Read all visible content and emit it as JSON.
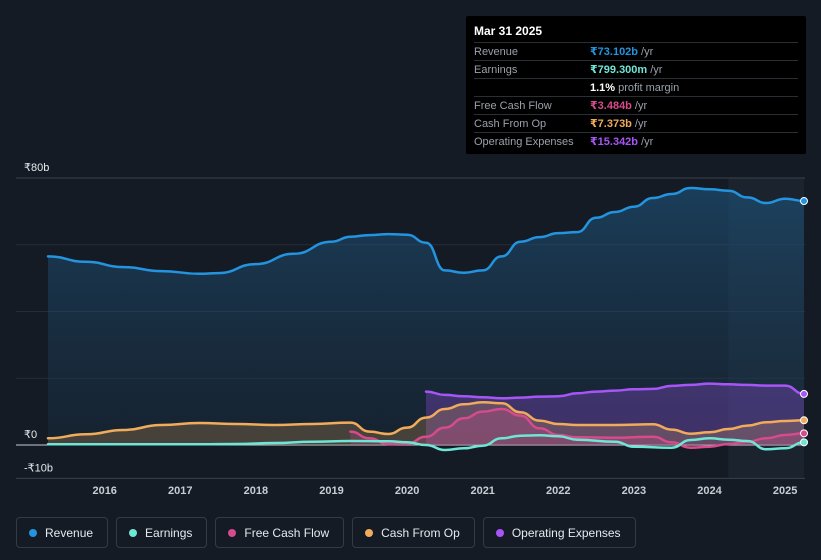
{
  "tooltip": {
    "date": "Mar 31 2025",
    "rows": [
      {
        "label": "Revenue",
        "value": "₹73.102b",
        "unit": "/yr",
        "color": "#2394df"
      },
      {
        "label": "Earnings",
        "value": "₹799.300m",
        "unit": "/yr",
        "color": "#6ee6d6"
      },
      {
        "label": "",
        "value": "1.1%",
        "unit": "profit margin",
        "color": "#ffffff"
      },
      {
        "label": "Free Cash Flow",
        "value": "₹3.484b",
        "unit": "/yr",
        "color": "#d54b8b"
      },
      {
        "label": "Cash From Op",
        "value": "₹7.373b",
        "unit": "/yr",
        "color": "#f0ac5a"
      },
      {
        "label": "Operating Expenses",
        "value": "₹15.342b",
        "unit": "/yr",
        "color": "#a855f7"
      }
    ]
  },
  "legend": [
    {
      "label": "Revenue",
      "color": "#2394df"
    },
    {
      "label": "Earnings",
      "color": "#6ee6d6"
    },
    {
      "label": "Free Cash Flow",
      "color": "#d54b8b"
    },
    {
      "label": "Cash From Op",
      "color": "#f0ac5a"
    },
    {
      "label": "Operating Expenses",
      "color": "#a855f7"
    }
  ],
  "chart_data": {
    "type": "area",
    "x_ticks": [
      "2016",
      "2017",
      "2018",
      "2019",
      "2020",
      "2021",
      "2022",
      "2023",
      "2024",
      "2025"
    ],
    "y_tick_labels": [
      "₹80b",
      "₹0",
      "-₹10b"
    ],
    "ylim": [
      -10,
      80
    ],
    "xlim": [
      2015.25,
      2025.25
    ],
    "forecast_start": 2024.25,
    "series": [
      {
        "name": "Revenue",
        "color": "#2394df",
        "fill": true,
        "points": [
          [
            2015.25,
            56.5
          ],
          [
            2015.75,
            54.9
          ],
          [
            2016.25,
            53.3
          ],
          [
            2016.75,
            52.1
          ],
          [
            2017.25,
            51.3
          ],
          [
            2017.5,
            51.5
          ],
          [
            2018.0,
            54.2
          ],
          [
            2018.5,
            57.3
          ],
          [
            2019.0,
            60.9
          ],
          [
            2019.25,
            62.4
          ],
          [
            2019.5,
            62.9
          ],
          [
            2019.75,
            63.2
          ],
          [
            2020.0,
            63.0
          ],
          [
            2020.25,
            60.6
          ],
          [
            2020.5,
            52.3
          ],
          [
            2020.75,
            51.6
          ],
          [
            2021.0,
            52.3
          ],
          [
            2021.25,
            56.5
          ],
          [
            2021.5,
            60.9
          ],
          [
            2021.75,
            62.3
          ],
          [
            2022.0,
            63.5
          ],
          [
            2022.25,
            63.8
          ],
          [
            2022.5,
            68.1
          ],
          [
            2022.75,
            69.8
          ],
          [
            2023.0,
            71.4
          ],
          [
            2023.25,
            74.0
          ],
          [
            2023.5,
            75.2
          ],
          [
            2023.75,
            77.0
          ],
          [
            2024.0,
            76.6
          ],
          [
            2024.25,
            76.2
          ],
          [
            2024.5,
            74.2
          ],
          [
            2024.75,
            72.5
          ],
          [
            2025.0,
            73.8
          ],
          [
            2025.25,
            73.1
          ]
        ]
      },
      {
        "name": "Operating Expenses",
        "color": "#a855f7",
        "fill": true,
        "points": [
          [
            2020.25,
            16.0
          ],
          [
            2020.5,
            15.0
          ],
          [
            2020.75,
            14.6
          ],
          [
            2021.0,
            14.3
          ],
          [
            2021.25,
            14.0
          ],
          [
            2021.5,
            14.2
          ],
          [
            2021.75,
            14.5
          ],
          [
            2022.0,
            14.6
          ],
          [
            2022.25,
            15.5
          ],
          [
            2022.5,
            16.0
          ],
          [
            2022.75,
            16.3
          ],
          [
            2023.0,
            16.7
          ],
          [
            2023.25,
            16.8
          ],
          [
            2023.5,
            17.7
          ],
          [
            2023.75,
            18.0
          ],
          [
            2024.0,
            18.4
          ],
          [
            2024.25,
            18.2
          ],
          [
            2024.5,
            18.0
          ],
          [
            2024.75,
            17.8
          ],
          [
            2025.0,
            17.8
          ],
          [
            2025.25,
            15.3
          ]
        ]
      },
      {
        "name": "Cash From Op",
        "color": "#f0ac5a",
        "fill": true,
        "points": [
          [
            2015.25,
            2.0
          ],
          [
            2015.75,
            3.2
          ],
          [
            2016.25,
            4.5
          ],
          [
            2016.75,
            6.0
          ],
          [
            2017.25,
            6.6
          ],
          [
            2017.75,
            6.3
          ],
          [
            2018.25,
            6.0
          ],
          [
            2018.75,
            6.3
          ],
          [
            2019.25,
            6.7
          ],
          [
            2019.5,
            4.0
          ],
          [
            2019.75,
            3.3
          ],
          [
            2020.0,
            5.2
          ],
          [
            2020.25,
            8.2
          ],
          [
            2020.5,
            10.8
          ],
          [
            2020.75,
            12.2
          ],
          [
            2021.0,
            12.8
          ],
          [
            2021.25,
            12.5
          ],
          [
            2021.5,
            9.8
          ],
          [
            2021.75,
            7.3
          ],
          [
            2022.0,
            6.3
          ],
          [
            2022.25,
            6.0
          ],
          [
            2022.75,
            6.0
          ],
          [
            2023.25,
            6.2
          ],
          [
            2023.5,
            4.6
          ],
          [
            2023.75,
            3.4
          ],
          [
            2024.0,
            3.8
          ],
          [
            2024.25,
            4.8
          ],
          [
            2024.5,
            5.8
          ],
          [
            2024.75,
            6.8
          ],
          [
            2025.0,
            7.2
          ],
          [
            2025.25,
            7.4
          ]
        ]
      },
      {
        "name": "Free Cash Flow",
        "color": "#d54b8b",
        "fill": true,
        "points": [
          [
            2019.25,
            4.0
          ],
          [
            2019.5,
            2.0
          ],
          [
            2019.75,
            0.3
          ],
          [
            2020.0,
            0.4
          ],
          [
            2020.25,
            2.5
          ],
          [
            2020.5,
            5.2
          ],
          [
            2020.75,
            8.0
          ],
          [
            2021.0,
            10.0
          ],
          [
            2021.25,
            10.8
          ],
          [
            2021.5,
            8.8
          ],
          [
            2021.75,
            5.0
          ],
          [
            2022.0,
            3.0
          ],
          [
            2022.25,
            2.3
          ],
          [
            2022.75,
            2.2
          ],
          [
            2023.25,
            2.5
          ],
          [
            2023.5,
            0.8
          ],
          [
            2023.75,
            -0.8
          ],
          [
            2024.0,
            -0.5
          ],
          [
            2024.25,
            0.3
          ],
          [
            2024.5,
            1.0
          ],
          [
            2024.75,
            2.0
          ],
          [
            2025.0,
            3.0
          ],
          [
            2025.25,
            3.5
          ]
        ]
      },
      {
        "name": "Earnings",
        "color": "#6ee6d6",
        "fill": false,
        "points": [
          [
            2015.25,
            0.2
          ],
          [
            2016.25,
            0.2
          ],
          [
            2017.25,
            0.2
          ],
          [
            2017.75,
            0.3
          ],
          [
            2018.25,
            0.6
          ],
          [
            2018.75,
            1.0
          ],
          [
            2019.25,
            1.2
          ],
          [
            2019.75,
            1.1
          ],
          [
            2020.0,
            0.8
          ],
          [
            2020.25,
            0.0
          ],
          [
            2020.5,
            -1.5
          ],
          [
            2020.75,
            -1.0
          ],
          [
            2021.0,
            -0.2
          ],
          [
            2021.25,
            2.0
          ],
          [
            2021.5,
            2.8
          ],
          [
            2021.75,
            2.9
          ],
          [
            2022.0,
            2.6
          ],
          [
            2022.25,
            1.6
          ],
          [
            2022.75,
            1.0
          ],
          [
            2023.0,
            -0.5
          ],
          [
            2023.5,
            -0.8
          ],
          [
            2023.75,
            1.5
          ],
          [
            2024.0,
            2.0
          ],
          [
            2024.25,
            1.6
          ],
          [
            2024.5,
            1.2
          ],
          [
            2024.75,
            -1.3
          ],
          [
            2025.0,
            -1.0
          ],
          [
            2025.25,
            0.8
          ]
        ]
      }
    ],
    "end_markers": [
      "Revenue",
      "Operating Expenses",
      "Cash From Op",
      "Free Cash Flow",
      "Earnings"
    ]
  }
}
